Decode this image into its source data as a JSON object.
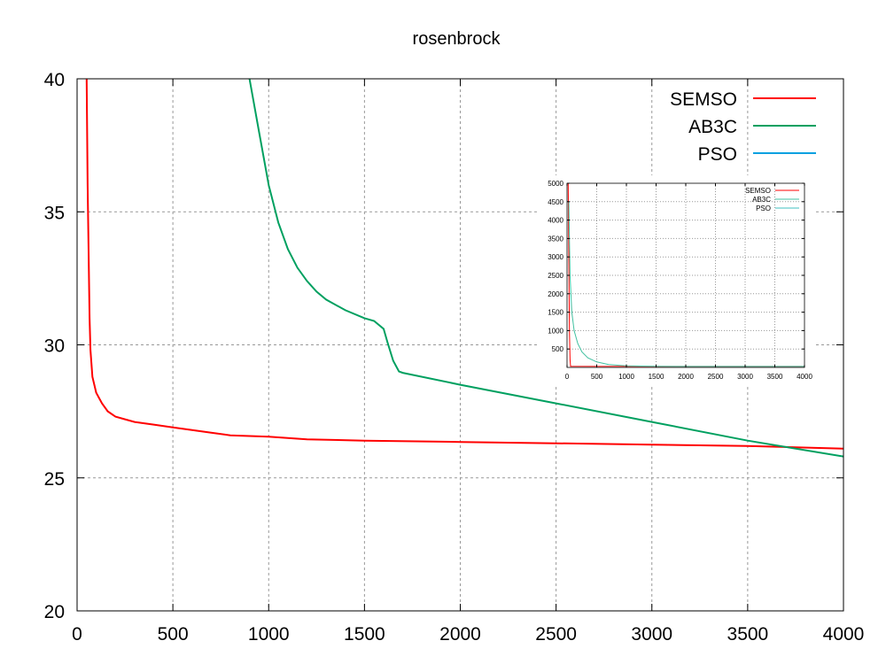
{
  "chart_data": [
    {
      "type": "line",
      "title": "rosenbrock",
      "xlabel": "",
      "ylabel": "",
      "xlim": [
        0,
        4000
      ],
      "ylim": [
        20,
        40
      ],
      "grid": true,
      "legend_position": "top-right",
      "x_ticks": [
        "0",
        "500",
        "1000",
        "1500",
        "2000",
        "2500",
        "3000",
        "3500",
        "4000"
      ],
      "y_ticks": [
        "20",
        "25",
        "30",
        "35",
        "40"
      ],
      "series": [
        {
          "name": "SEMSO",
          "color": "#ff0000",
          "x": [
            50,
            55,
            60,
            65,
            70,
            80,
            100,
            130,
            160,
            200,
            250,
            300,
            400,
            500,
            600,
            700,
            800,
            1000,
            1200,
            1500,
            2000,
            2500,
            3000,
            3500,
            4000
          ],
          "y": [
            40,
            36,
            33.5,
            31,
            29.8,
            28.8,
            28.2,
            27.8,
            27.5,
            27.3,
            27.2,
            27.1,
            27.0,
            26.9,
            26.8,
            26.7,
            26.6,
            26.55,
            26.45,
            26.4,
            26.35,
            26.3,
            26.25,
            26.2,
            26.1
          ]
        },
        {
          "name": "AB3C",
          "color": "#00a060",
          "x": [
            900,
            950,
            1000,
            1050,
            1100,
            1150,
            1200,
            1250,
            1300,
            1400,
            1500,
            1550,
            1600,
            1620,
            1650,
            1680,
            1700,
            2000,
            2500,
            3000,
            3500,
            4000
          ],
          "y": [
            40,
            38,
            36,
            34.6,
            33.6,
            32.9,
            32.4,
            32.0,
            31.7,
            31.3,
            31.0,
            30.9,
            30.6,
            30.1,
            29.4,
            29.0,
            28.95,
            28.5,
            27.8,
            27.1,
            26.4,
            25.8
          ]
        },
        {
          "name": "PSO",
          "color": "#00a0e0",
          "x": [],
          "y": []
        }
      ]
    },
    {
      "type": "line",
      "title": "",
      "xlim": [
        0,
        4000
      ],
      "ylim": [
        0,
        5000
      ],
      "grid": true,
      "legend_position": "top-right",
      "x_ticks": [
        "0",
        "500",
        "1000",
        "1500",
        "2000",
        "2500",
        "3000",
        "3500",
        "4000"
      ],
      "y_ticks": [
        "500",
        "1000",
        "1500",
        "2000",
        "2500",
        "3000",
        "3500",
        "4000",
        "4500",
        "5000"
      ],
      "series": [
        {
          "name": "SEMSO",
          "color": "#ff0000",
          "x": [
            20,
            30,
            40,
            50,
            60,
            4000
          ],
          "y": [
            5000,
            3000,
            1000,
            200,
            30,
            26
          ]
        },
        {
          "name": "AB3C",
          "color": "#40c0a0",
          "x": [
            30,
            50,
            80,
            120,
            180,
            250,
            350,
            500,
            700,
            1000,
            1500,
            4000
          ],
          "y": [
            4500,
            2500,
            1500,
            1000,
            650,
            420,
            260,
            150,
            80,
            40,
            30,
            26
          ]
        },
        {
          "name": "PSO",
          "color": "#40c0c0",
          "x": [],
          "y": []
        }
      ]
    }
  ]
}
